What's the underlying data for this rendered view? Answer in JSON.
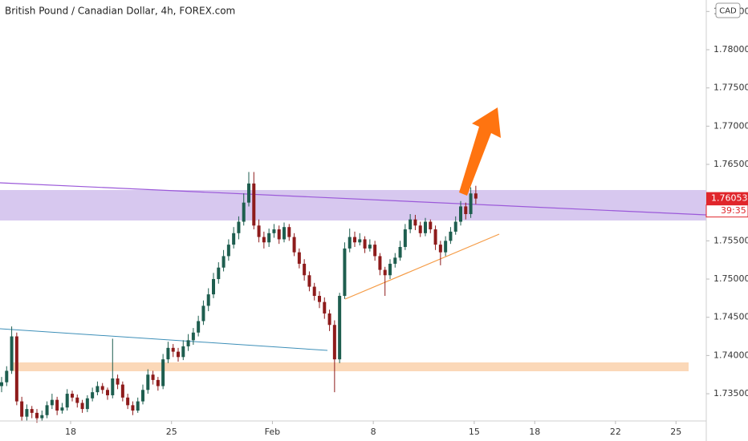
{
  "chart_data": {
    "type": "candlestick",
    "title": "British Pound / Canadian Dollar, 4h, FOREX.com",
    "currency": "CAD",
    "countdown": "39:35",
    "up_color": "#1e5e4f",
    "down_color": "#8e1b1b",
    "grid": false,
    "ylim": [
      1.73144,
      1.7865
    ],
    "yticks": [
      {
        "value": 1.735,
        "label": "1.73500"
      },
      {
        "value": 1.74,
        "label": "1.74000"
      },
      {
        "value": 1.745,
        "label": "1.74500"
      },
      {
        "value": 1.75,
        "label": "1.75000"
      },
      {
        "value": 1.755,
        "label": "1.75500"
      },
      {
        "value": 1.76,
        "label": "1.76000"
      },
      {
        "value": 1.765,
        "label": "1.76500"
      },
      {
        "value": 1.77,
        "label": "1.77000"
      },
      {
        "value": 1.775,
        "label": "1.77500"
      },
      {
        "value": 1.78,
        "label": "1.78000"
      },
      {
        "value": 1.785,
        "label": "1.78500"
      }
    ],
    "xlim": [
      0,
      140
    ],
    "xticks": [
      {
        "value": 14,
        "label": "18"
      },
      {
        "value": 34,
        "label": "25"
      },
      {
        "value": 54,
        "label": "Feb"
      },
      {
        "value": 74,
        "label": "8"
      },
      {
        "value": 94,
        "label": "15"
      },
      {
        "value": 106,
        "label": "18"
      },
      {
        "value": 122,
        "label": "22"
      },
      {
        "value": 134,
        "label": "25"
      }
    ],
    "open": [
      1.736,
      1.7365,
      1.738,
      1.7425,
      1.734,
      1.732,
      1.733,
      1.7325,
      1.7318,
      1.7322,
      1.7335,
      1.7342,
      1.7328,
      1.7332,
      1.735,
      1.7345,
      1.7338,
      1.733,
      1.7344,
      1.7352,
      1.736,
      1.7355,
      1.7348,
      1.737,
      1.7362,
      1.7345,
      1.7335,
      1.7328,
      1.734,
      1.7355,
      1.7375,
      1.7368,
      1.736,
      1.7395,
      1.741,
      1.7405,
      1.7398,
      1.7412,
      1.742,
      1.743,
      1.7445,
      1.7465,
      1.748,
      1.75,
      1.7515,
      1.753,
      1.7545,
      1.756,
      1.7575,
      1.76,
      1.7625,
      1.757,
      1.7555,
      1.7548,
      1.756,
      1.7565,
      1.7552,
      1.7568,
      1.7555,
      1.7535,
      1.752,
      1.7505,
      1.749,
      1.7478,
      1.747,
      1.7455,
      1.744,
      1.7395,
      1.7478,
      1.754,
      1.7555,
      1.7548,
      1.7552,
      1.754,
      1.7545,
      1.753,
      1.7512,
      1.7505,
      1.752,
      1.7528,
      1.7542,
      1.7565,
      1.7578,
      1.757,
      1.756,
      1.7575,
      1.7565,
      1.7545,
      1.7535,
      1.755,
      1.7562,
      1.7575,
      1.7595,
      1.7585,
      1.7612
    ],
    "high": [
      1.7372,
      1.7386,
      1.7438,
      1.743,
      1.7346,
      1.7336,
      1.7334,
      1.733,
      1.7328,
      1.734,
      1.735,
      1.7346,
      1.7338,
      1.7356,
      1.7354,
      1.7349,
      1.7342,
      1.7348,
      1.7358,
      1.7366,
      1.7364,
      1.7358,
      1.7422,
      1.7375,
      1.7366,
      1.735,
      1.734,
      1.7345,
      1.7362,
      1.7382,
      1.738,
      1.7372,
      1.7402,
      1.7418,
      1.7415,
      1.741,
      1.742,
      1.7428,
      1.7436,
      1.7452,
      1.7472,
      1.7488,
      1.7508,
      1.7522,
      1.7538,
      1.7552,
      1.7568,
      1.7582,
      1.7612,
      1.764,
      1.764,
      1.7578,
      1.7562,
      1.7566,
      1.7572,
      1.757,
      1.7574,
      1.7572,
      1.756,
      1.754,
      1.7526,
      1.751,
      1.7495,
      1.7484,
      1.7476,
      1.746,
      1.7446,
      1.7482,
      1.7548,
      1.7566,
      1.7562,
      1.756,
      1.7556,
      1.7552,
      1.755,
      1.7534,
      1.7516,
      1.7526,
      1.7534,
      1.755,
      1.7572,
      1.7585,
      1.7584,
      1.7575,
      1.758,
      1.7578,
      1.757,
      1.755,
      1.7556,
      1.7568,
      1.7582,
      1.7602,
      1.76,
      1.762,
      1.7622
    ],
    "low": [
      1.7352,
      1.736,
      1.7376,
      1.7335,
      1.7314,
      1.7315,
      1.7318,
      1.7312,
      1.7314,
      1.7318,
      1.733,
      1.7322,
      1.7324,
      1.7328,
      1.734,
      1.7332,
      1.7325,
      1.7326,
      1.734,
      1.7348,
      1.735,
      1.7342,
      1.7344,
      1.7356,
      1.734,
      1.733,
      1.7322,
      1.7325,
      1.7336,
      1.735,
      1.7362,
      1.7354,
      1.7356,
      1.739,
      1.7398,
      1.7392,
      1.7394,
      1.7406,
      1.7414,
      1.7425,
      1.744,
      1.7458,
      1.7475,
      1.7494,
      1.751,
      1.7524,
      1.754,
      1.7552,
      1.757,
      1.7595,
      1.7565,
      1.7548,
      1.754,
      1.7542,
      1.7554,
      1.7546,
      1.7548,
      1.755,
      1.753,
      1.7514,
      1.7498,
      1.7484,
      1.7472,
      1.7462,
      1.7448,
      1.7432,
      1.7352,
      1.739,
      1.7474,
      1.7535,
      1.7542,
      1.7544,
      1.7534,
      1.7536,
      1.7524,
      1.7505,
      1.7478,
      1.75,
      1.7515,
      1.7524,
      1.7538,
      1.756,
      1.7564,
      1.7555,
      1.7556,
      1.756,
      1.7538,
      1.7518,
      1.753,
      1.7546,
      1.7558,
      1.757,
      1.7578,
      1.758,
      1.7598
    ],
    "close": [
      1.7365,
      1.738,
      1.7425,
      1.734,
      1.732,
      1.733,
      1.7325,
      1.7318,
      1.7322,
      1.7335,
      1.7342,
      1.7328,
      1.7332,
      1.735,
      1.7345,
      1.7338,
      1.733,
      1.7344,
      1.7352,
      1.736,
      1.7355,
      1.7348,
      1.737,
      1.7362,
      1.7345,
      1.7335,
      1.7328,
      1.734,
      1.7355,
      1.7375,
      1.7368,
      1.736,
      1.7395,
      1.741,
      1.7405,
      1.7398,
      1.7412,
      1.742,
      1.743,
      1.7445,
      1.7465,
      1.748,
      1.75,
      1.7515,
      1.753,
      1.7545,
      1.756,
      1.7575,
      1.76,
      1.7625,
      1.757,
      1.7555,
      1.7548,
      1.756,
      1.7565,
      1.7552,
      1.7568,
      1.7555,
      1.7535,
      1.752,
      1.7505,
      1.749,
      1.7478,
      1.747,
      1.7455,
      1.744,
      1.7395,
      1.7478,
      1.754,
      1.7555,
      1.7548,
      1.7552,
      1.754,
      1.7545,
      1.753,
      1.7512,
      1.7505,
      1.752,
      1.7528,
      1.7542,
      1.7565,
      1.7578,
      1.757,
      1.756,
      1.7575,
      1.7565,
      1.7545,
      1.7535,
      1.755,
      1.7562,
      1.7575,
      1.7595,
      1.7585,
      1.7612,
      1.76053
    ]
  }
}
